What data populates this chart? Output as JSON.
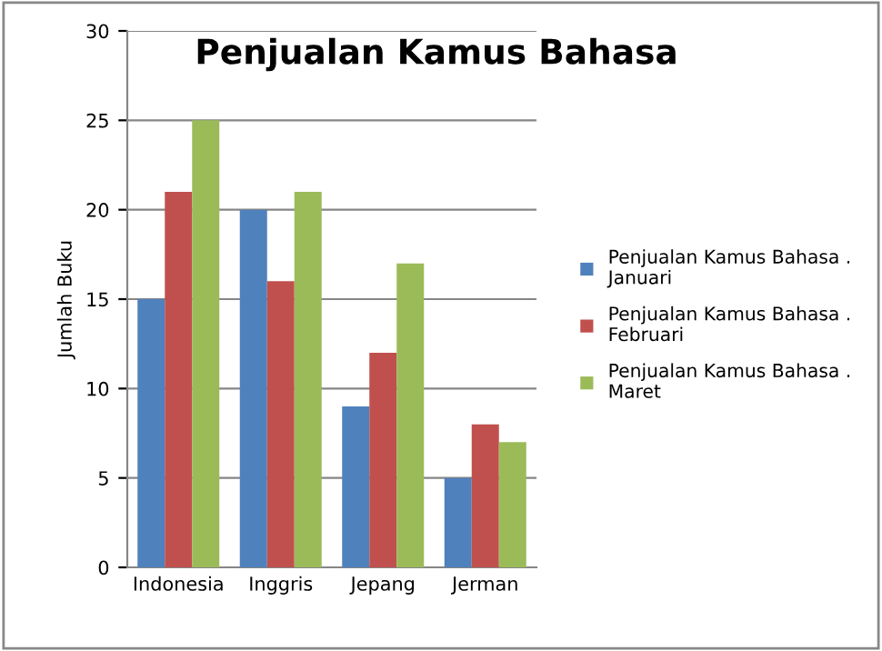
{
  "chart_data": {
    "type": "bar",
    "title": "Penjualan Kamus Bahasa",
    "ylabel": "Jumlah Buku",
    "categories": [
      "Indonesia",
      "Inggris",
      "Jepang",
      "Jerman"
    ],
    "series": [
      {
        "name": "Penjualan Kamus Bahasa . Januari",
        "color": "#4f81bd",
        "values": [
          15,
          20,
          9,
          5
        ]
      },
      {
        "name": "Penjualan Kamus Bahasa . Februari",
        "color": "#c0504d",
        "values": [
          21,
          16,
          12,
          8
        ]
      },
      {
        "name": "Penjualan Kamus Bahasa . Maret",
        "color": "#9bbb59",
        "values": [
          25,
          21,
          17,
          7
        ]
      }
    ],
    "ylim": [
      0,
      30
    ],
    "yticks": [
      0,
      5,
      10,
      15,
      20,
      25,
      30
    ],
    "grid": "y",
    "legend": "right"
  }
}
